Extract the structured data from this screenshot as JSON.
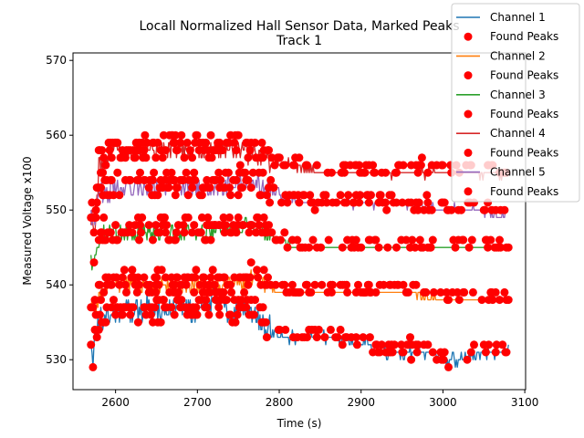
{
  "chart_data": {
    "type": "line",
    "title": "Locall Normalized Hall Sensor Data, Marked Peaks",
    "subtitle": "Track 1",
    "xlabel": "Time (s)",
    "ylabel": "Measured Voltage x100",
    "xlim": [
      2548,
      3101
    ],
    "ylim": [
      526,
      571
    ],
    "xticks": [
      2600,
      2700,
      2800,
      2900,
      3000,
      3100
    ],
    "yticks": [
      530,
      540,
      550,
      560,
      570
    ],
    "grid": false,
    "legend_position": "top-right",
    "peak_color": "#ff0000",
    "series": [
      {
        "name": "Channel 1",
        "color": "#1f77b4",
        "x": [
          2570,
          2572,
          2575,
          2580,
          2590,
          2600,
          2620,
          2640,
          2660,
          2680,
          2700,
          2720,
          2740,
          2760,
          2765,
          2775,
          2790,
          2810,
          2850,
          2910,
          2920,
          2960,
          2990,
          3000,
          3020,
          3050,
          3080
        ],
        "values": [
          531,
          528,
          534,
          535,
          536,
          537,
          536,
          537,
          536,
          537,
          536,
          538,
          536,
          537,
          536,
          535,
          534,
          533,
          533,
          532,
          531,
          531,
          531,
          530,
          530,
          531,
          531
        ],
        "noise": 1.8
      },
      {
        "name": "Channel 2",
        "color": "#ff7f0e",
        "x": [
          2570,
          2575,
          2580,
          2590,
          2600,
          2640,
          2680,
          2720,
          2760,
          2770,
          2790,
          2800,
          2850,
          2900,
          2950,
          3000,
          3050,
          3080
        ],
        "values": [
          538,
          537,
          539,
          540,
          540,
          540,
          540,
          540,
          540,
          541,
          540,
          539,
          539,
          539,
          539,
          538,
          538,
          538
        ],
        "noise": 1.2
      },
      {
        "name": "Channel 3",
        "color": "#2ca02c",
        "x": [
          2570,
          2573,
          2580,
          2590,
          2600,
          2640,
          2680,
          2720,
          2760,
          2780,
          2800,
          2820,
          2850,
          2900,
          2950,
          3000,
          3050,
          3080
        ],
        "values": [
          544,
          542,
          546,
          547,
          547,
          547,
          547,
          547,
          548,
          547,
          546,
          545,
          545,
          545,
          545,
          545,
          545,
          545
        ],
        "noise": 1.0
      },
      {
        "name": "Channel 4",
        "color": "#d62728",
        "x": [
          2570,
          2575,
          2580,
          2600,
          2640,
          2680,
          2720,
          2760,
          2780,
          2800,
          2820,
          2850,
          2900,
          2950,
          3000,
          3050,
          3080
        ],
        "values": [
          549,
          548,
          556,
          558,
          558,
          558,
          558,
          558,
          557,
          556,
          556,
          555,
          555,
          555,
          555,
          555,
          555
        ],
        "noise": 1.5
      },
      {
        "name": "Channel 5",
        "color": "#9467bd",
        "x": [
          2570,
          2575,
          2580,
          2600,
          2640,
          2680,
          2720,
          2760,
          2780,
          2800,
          2830,
          2850,
          2900,
          2950,
          3000,
          3050,
          3070,
          3080
        ],
        "values": [
          550,
          549,
          552,
          553,
          553,
          553,
          553,
          554,
          553,
          552,
          551,
          551,
          551,
          551,
          550,
          550,
          549,
          550
        ],
        "noise": 1.5
      }
    ],
    "legend": [
      "Channel 1",
      "Found Peaks",
      "Channel 2",
      "Found Peaks",
      "Channel 3",
      "Found Peaks",
      "Channel 4",
      "Found Peaks",
      "Channel 5",
      "Found Peaks"
    ]
  }
}
